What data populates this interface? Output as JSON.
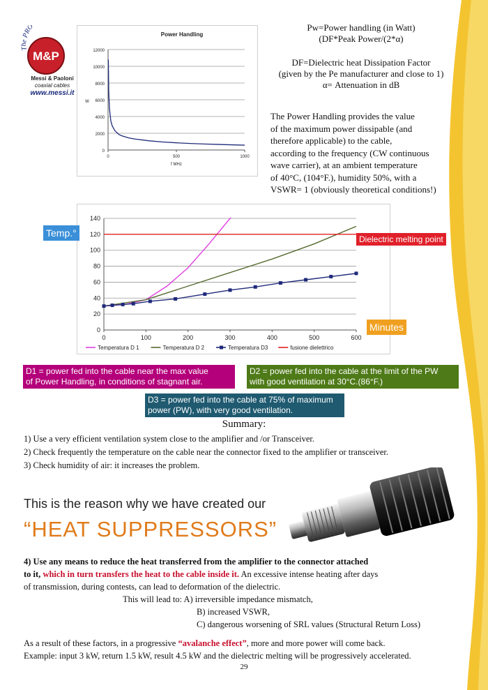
{
  "logo": {
    "tagline": "The PRO choice",
    "initials": "M&P",
    "company": "Messi & Paoloni",
    "subtitle": "coaxial cables",
    "website": "www.messi.it"
  },
  "formula": {
    "line1": "Pw=Power handling (in Watt)",
    "line2": "(DF*Peak Power/(2*α)",
    "line3": "DF=Dielectric heat Dissipation Factor",
    "line4": "(given by the Pe manufacturer and close to 1)",
    "line5": "α= Attenuation in dB"
  },
  "description": [
    "The Power Handling provides the value",
    "of the maximum power dissipable (and",
    "therefore applicable) to the cable,",
    "according to the frequency (CW continuous",
    "wave carrier), at an ambient temperature",
    "of 40°C, (104°F.), humidity 50%, with a",
    "VSWR= 1 (obviously theoretical conditions!)"
  ],
  "chart_data": [
    {
      "type": "line",
      "title": "Power Handling",
      "xlabel": "f MHz",
      "ylabel": "W",
      "xlim": [
        0,
        1000
      ],
      "ylim": [
        0,
        12000
      ],
      "x_ticks": [
        "0",
        "500",
        "1000"
      ],
      "y_ticks": [
        "0",
        "2000",
        "4000",
        "6000",
        "8000",
        "10000",
        "12000"
      ],
      "grid": true,
      "series": [
        {
          "color": "#1f2a7a",
          "x": [
            2,
            5,
            10,
            20,
            30,
            50,
            80,
            100,
            150,
            200,
            300,
            400,
            500,
            600,
            700,
            800,
            900,
            1000
          ],
          "y": [
            10800,
            7000,
            5000,
            3500,
            2900,
            2300,
            1850,
            1700,
            1450,
            1300,
            1100,
            960,
            860,
            780,
            720,
            670,
            620,
            580
          ]
        }
      ]
    },
    {
      "type": "line",
      "xlim": [
        0,
        600
      ],
      "ylim": [
        0,
        140
      ],
      "x_ticks": [
        "0",
        "100",
        "200",
        "300",
        "400",
        "500",
        "600"
      ],
      "y_ticks": [
        "0",
        "20",
        "40",
        "60",
        "80",
        "100",
        "120",
        "140"
      ],
      "grid": true,
      "legend": "bottom",
      "series": [
        {
          "name": "Temperatura D 1",
          "color": "#e040e0",
          "x": [
            0,
            50,
            100,
            150,
            200,
            250,
            300,
            320
          ],
          "y": [
            30,
            32,
            38,
            55,
            78,
            108,
            140,
            150
          ]
        },
        {
          "name": "Temperatura D 2",
          "color": "#556b2f",
          "x": [
            0,
            100,
            200,
            300,
            400,
            500,
            600
          ],
          "y": [
            30,
            38,
            55,
            72,
            89,
            108,
            130
          ]
        },
        {
          "name": "Temperatura D3",
          "color": "#1f2a7a",
          "markers": true,
          "x": [
            0,
            20,
            45,
            70,
            110,
            170,
            240,
            300,
            360,
            420,
            480,
            540,
            600
          ],
          "y": [
            30,
            31,
            32,
            33,
            36,
            39,
            45,
            50,
            54,
            59,
            63,
            67,
            71
          ]
        },
        {
          "name": "fusione dielettrico",
          "color": "#e02020",
          "x": [
            0,
            600
          ],
          "y": [
            120,
            120
          ]
        }
      ]
    }
  ],
  "chart_labels": {
    "temp": "Temp.°",
    "melting": "Dielectric melting point",
    "minutes": "Minutes"
  },
  "colors": {
    "temp_box": "#3a8fd8",
    "melting_box": "#e0202a",
    "minutes_box": "#f0a020",
    "d1_box": "#b4007a",
    "d2_box": "#4e7a18",
    "d3_box": "#1f5a70",
    "accent_orange": "#e07b1a",
    "wave": "#f4c430"
  },
  "definitions": {
    "d1": [
      "D1 = power fed into the cable near the max value",
      "of Power Handling, in conditions of stagnant air."
    ],
    "d2": [
      "D2 = power fed into the cable at the limit of the PW",
      "with good ventilation at 30°C.(86°F.)"
    ],
    "d3": [
      "D3 = power fed into the cable at 75% of maximum",
      "power (PW), with very good ventilation."
    ]
  },
  "summary": {
    "title": "Summary:",
    "items": [
      "1) Use a very efficient ventilation system close to the amplifier and /or Transceiver.",
      "2) Check frequently the temperature on the cable near the connector fixed to the amplifier or transceiver.",
      "3) Check humidity of air: it increases the problem."
    ]
  },
  "promo": {
    "intro": "This is the reason why we have created our",
    "headline": "“HEAT SUPPRESSORS”",
    "product_label": "HEAT SUPPRESSOR"
  },
  "point4": {
    "number": "4)",
    "bold": "Use any means to reduce the heat transferred from the amplifier to the connector attached",
    "bold2": "to it,",
    "red": "which in turn transfers the heat to the cable inside it.",
    "rest": "An excessive intense heating after days",
    "line2": "of transmission, during contests, can lead to deformation of the dielectric.",
    "lead": "This will lead to: A) irreversible impedance mismatch,",
    "b": "B) increased VSWR,",
    "c": "C) dangerous worsening of SRL values (Structural Return Loss)"
  },
  "conclusion": {
    "pre": "As a result of these factors, in a progressive",
    "highlight": "“avalanche effect”",
    "post": ", more and more power will come back.",
    "line2": "Example: input 3 kW, return 1.5 kW, result 4.5 kW and the dielectric melting will be progressively accelerated."
  },
  "page_number": "29"
}
